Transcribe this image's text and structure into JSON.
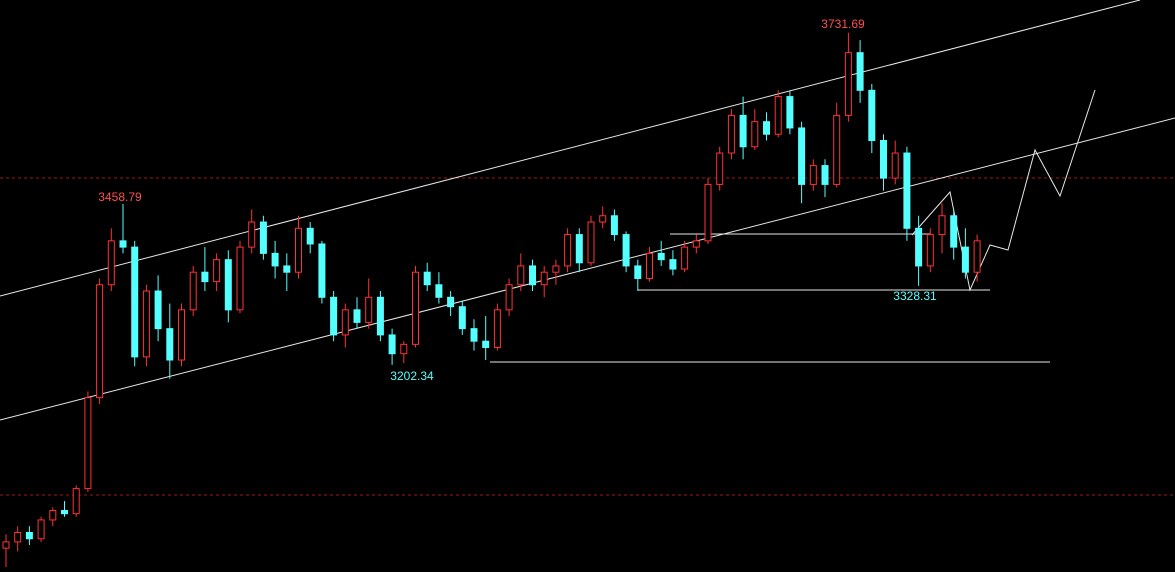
{
  "chart_data": {
    "type": "candlestick",
    "ylim": [
      2872,
      3784
    ],
    "up_color": "#ff3232",
    "down_color": "#54ffff",
    "open": [
      2910,
      2920,
      2935,
      2925,
      2955,
      2970,
      2965,
      3005,
      3150,
      3330,
      3400,
      3390,
      3215,
      3320,
      3260,
      3210,
      3290,
      3350,
      3335,
      3370,
      3290,
      3390,
      3430,
      3380,
      3360,
      3350,
      3420,
      3395,
      3310,
      3250,
      3290,
      3270,
      3310,
      3250,
      3220,
      3235,
      3350,
      3330,
      3310,
      3295,
      3260,
      3240,
      3230,
      3290,
      3330,
      3360,
      3330,
      3350,
      3360,
      3410,
      3365,
      3430,
      3440,
      3410,
      3360,
      3340,
      3380,
      3370,
      3355,
      3390,
      3400,
      3490,
      3540,
      3600,
      3550,
      3590,
      3570,
      3630,
      3580,
      3490,
      3520,
      3490,
      3600,
      3700,
      3640,
      3560,
      3500,
      3540,
      3420,
      3360,
      3410,
      3440,
      3390,
      3350
    ],
    "high": [
      2932,
      2945,
      2945,
      2960,
      2975,
      2985,
      3010,
      3160,
      3340,
      3420,
      3458.79,
      3400,
      3330,
      3345,
      3300,
      3300,
      3360,
      3390,
      3380,
      3385,
      3400,
      3450,
      3440,
      3400,
      3380,
      3440,
      3430,
      3400,
      3320,
      3300,
      3310,
      3340,
      3320,
      3260,
      3240,
      3360,
      3365,
      3350,
      3320,
      3305,
      3275,
      3280,
      3300,
      3340,
      3380,
      3370,
      3360,
      3370,
      3420,
      3420,
      3440,
      3455,
      3450,
      3415,
      3370,
      3390,
      3400,
      3385,
      3400,
      3410,
      3500,
      3550,
      3610,
      3630,
      3610,
      3605,
      3640,
      3640,
      3590,
      3530,
      3530,
      3620,
      3731.69,
      3720,
      3650,
      3570,
      3560,
      3550,
      3440,
      3420,
      3460,
      3450,
      3420,
      3410
    ],
    "low": [
      2880,
      2905,
      2915,
      2920,
      2945,
      2960,
      2960,
      3000,
      3140,
      3320,
      3380,
      3200,
      3200,
      3240,
      3180,
      3200,
      3280,
      3320,
      3320,
      3270,
      3285,
      3380,
      3370,
      3340,
      3320,
      3340,
      3380,
      3300,
      3240,
      3230,
      3260,
      3260,
      3240,
      3202.34,
      3205,
      3230,
      3320,
      3300,
      3280,
      3250,
      3225,
      3210,
      3225,
      3280,
      3320,
      3320,
      3310,
      3330,
      3350,
      3350,
      3360,
      3420,
      3400,
      3350,
      3320,
      3335,
      3360,
      3345,
      3350,
      3380,
      3395,
      3480,
      3530,
      3530,
      3545,
      3560,
      3565,
      3570,
      3460,
      3480,
      3470,
      3485,
      3590,
      3620,
      3540,
      3480,
      3490,
      3400,
      3328.31,
      3350,
      3380,
      3370,
      3340,
      3335
    ],
    "close": [
      2920,
      2935,
      2925,
      2955,
      2970,
      2965,
      3005,
      3150,
      3330,
      3400,
      3390,
      3215,
      3320,
      3260,
      3210,
      3290,
      3350,
      3335,
      3370,
      3290,
      3390,
      3430,
      3380,
      3360,
      3350,
      3420,
      3395,
      3310,
      3250,
      3290,
      3270,
      3310,
      3250,
      3220,
      3235,
      3350,
      3330,
      3310,
      3295,
      3260,
      3240,
      3230,
      3290,
      3330,
      3360,
      3330,
      3350,
      3360,
      3410,
      3365,
      3430,
      3440,
      3410,
      3360,
      3340,
      3380,
      3370,
      3355,
      3390,
      3400,
      3490,
      3540,
      3600,
      3550,
      3590,
      3570,
      3630,
      3580,
      3490,
      3520,
      3490,
      3600,
      3700,
      3640,
      3560,
      3500,
      3540,
      3420,
      3360,
      3410,
      3440,
      3390,
      3350,
      3400
    ]
  }
}
